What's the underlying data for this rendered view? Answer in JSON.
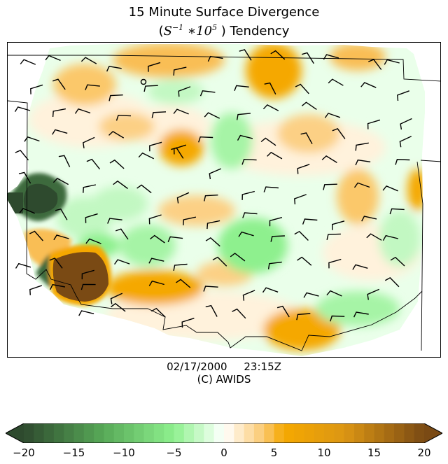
{
  "title": {
    "line1": "15 Minute Surface Divergence",
    "line2_unit_base": "S",
    "line2_unit_exp": "−1",
    "line2_mult": "∗10",
    "line2_mult_exp": "5",
    "line2_suffix": " ) Tendency"
  },
  "timestamp": {
    "date": "02/17/2000",
    "time": "23:15Z",
    "copyright": "(C) AWIDS"
  },
  "colorbar": {
    "min": -20,
    "max": 20,
    "step": 1,
    "extend": "both",
    "ticks": [
      "−20",
      "−15",
      "−10",
      "−5",
      "0",
      "5",
      "10",
      "15",
      "20"
    ],
    "tick_values": [
      -20,
      -15,
      -10,
      -5,
      0,
      5,
      10,
      15,
      20
    ]
  },
  "colors": {
    "strong_convergence": "#2e4a2e",
    "convergence": "#8ef08e",
    "weak_convergence": "#e8ffe8",
    "weak_divergence": "#fff0d8",
    "divergence": "#f5a800",
    "strong_divergence": "#7a4a14"
  }
}
